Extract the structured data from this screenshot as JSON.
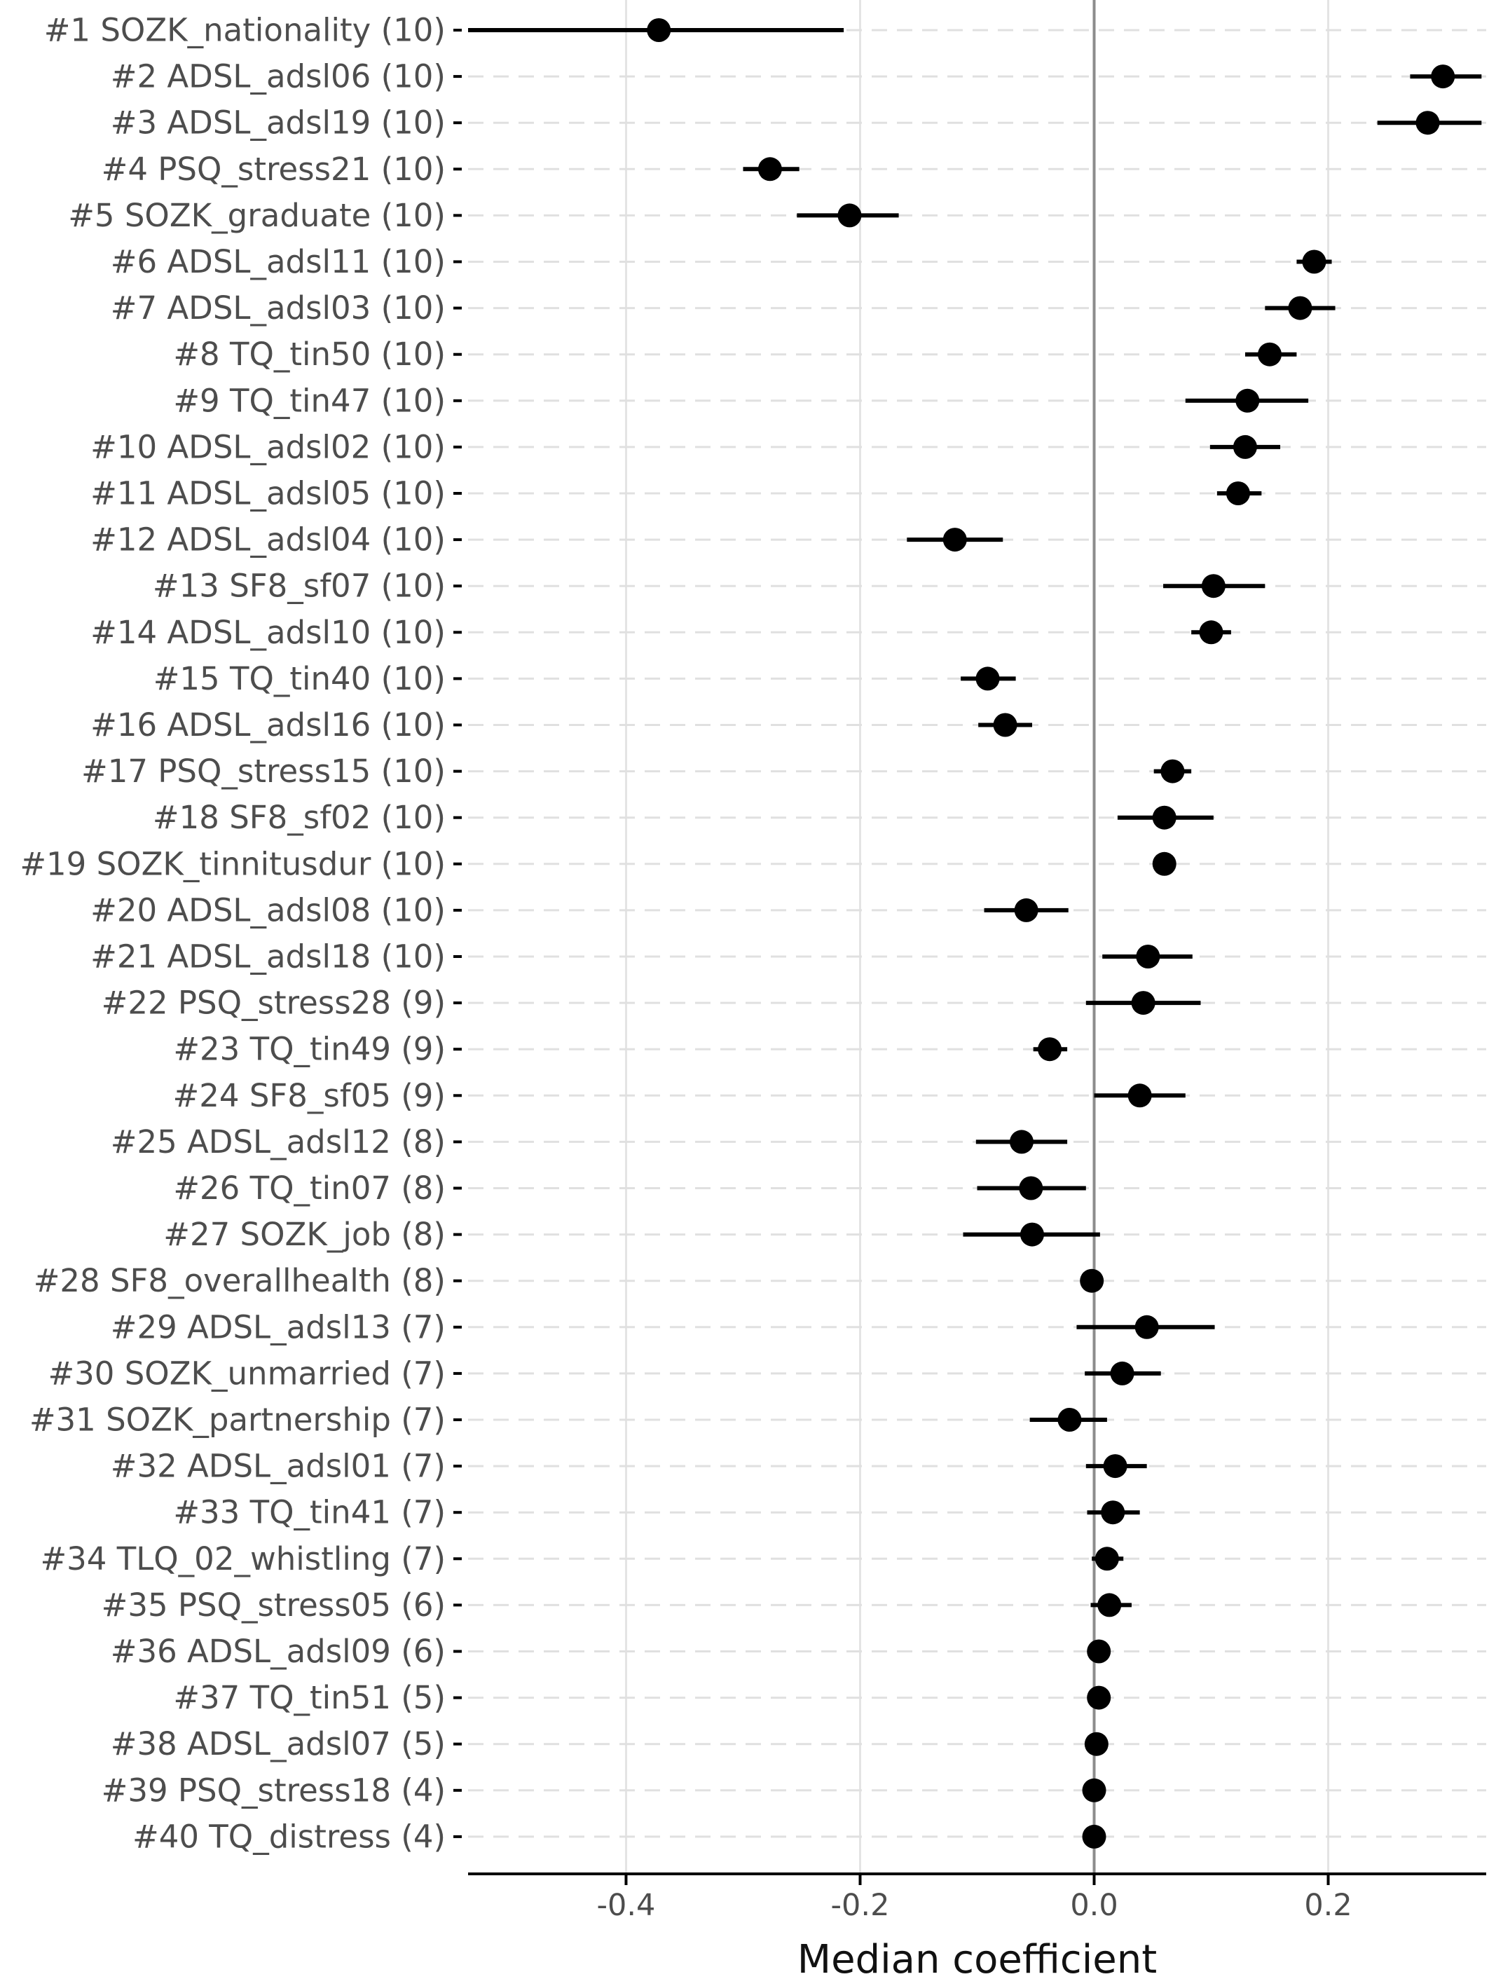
{
  "chart_data": {
    "type": "scatter",
    "xlabel": "Median coefficient",
    "ylabel": "",
    "xlim": [
      -0.535,
      0.335
    ],
    "xticks": [
      -0.4,
      -0.2,
      0.0,
      0.2
    ],
    "xtick_labels": [
      "-0.4",
      "-0.2",
      "0.0",
      "0.2"
    ],
    "vline": 0,
    "colors": {
      "point": "#000000",
      "grid": "#e4e4e4",
      "dashed": "#e0e0e0",
      "zero_line": "#8c8c8c",
      "axis": "#000000"
    },
    "categories": [
      "#1 SOZK_nationality (10)",
      "#2 ADSL_adsl06 (10)",
      "#3 ADSL_adsl19 (10)",
      "#4 PSQ_stress21 (10)",
      "#5 SOZK_graduate (10)",
      "#6 ADSL_adsl11 (10)",
      "#7 ADSL_adsl03 (10)",
      "#8 TQ_tin50 (10)",
      "#9 TQ_tin47 (10)",
      "#10 ADSL_adsl02 (10)",
      "#11 ADSL_adsl05 (10)",
      "#12 ADSL_adsl04 (10)",
      "#13 SF8_sf07 (10)",
      "#14 ADSL_adsl10 (10)",
      "#15 TQ_tin40 (10)",
      "#16 ADSL_adsl16 (10)",
      "#17 PSQ_stress15 (10)",
      "#18 SF8_sf02 (10)",
      "#19 SOZK_tinnitusdur (10)",
      "#20 ADSL_adsl08 (10)",
      "#21 ADSL_adsl18 (10)",
      "#22 PSQ_stress28 (9)",
      "#23 TQ_tin49 (9)",
      "#24 SF8_sf05 (9)",
      "#25 ADSL_adsl12 (8)",
      "#26 TQ_tin07 (8)",
      "#27 SOZK_job (8)",
      "#28 SF8_overallhealth (8)",
      "#29 ADSL_adsl13 (7)",
      "#30 SOZK_unmarried (7)",
      "#31 SOZK_partnership (7)",
      "#32 ADSL_adsl01 (7)",
      "#33 TQ_tin41 (7)",
      "#34 TLQ_02_whistling (7)",
      "#35 PSQ_stress05 (6)",
      "#36 ADSL_adsl09 (6)",
      "#37 TQ_tin51 (5)",
      "#38 ADSL_adsl07 (5)",
      "#39 PSQ_stress18 (4)",
      "#40 TQ_distress (4)"
    ],
    "median": [
      -0.372,
      0.298,
      0.285,
      -0.277,
      -0.209,
      0.188,
      0.176,
      0.15,
      0.131,
      0.129,
      0.123,
      -0.119,
      0.102,
      0.1,
      -0.091,
      -0.076,
      0.067,
      0.06,
      0.06,
      -0.058,
      0.046,
      0.042,
      -0.038,
      0.039,
      -0.062,
      -0.054,
      -0.053,
      -0.002,
      0.045,
      0.024,
      -0.021,
      0.018,
      0.016,
      0.011,
      0.013,
      0.004,
      0.004,
      0.002,
      0.0,
      0.0
    ],
    "lower": [
      -0.535,
      0.27,
      0.242,
      -0.3,
      -0.254,
      0.173,
      0.146,
      0.129,
      0.078,
      0.099,
      0.105,
      -0.16,
      0.059,
      0.083,
      -0.114,
      -0.099,
      0.051,
      0.02,
      0.06,
      -0.094,
      0.007,
      -0.007,
      -0.052,
      0.0,
      -0.101,
      -0.1,
      -0.112,
      -0.002,
      -0.015,
      -0.008,
      -0.055,
      -0.007,
      -0.006,
      -0.002,
      -0.003,
      0.004,
      0.004,
      0.002,
      0.0,
      0.0
    ],
    "upper": [
      -0.214,
      0.331,
      0.331,
      -0.252,
      -0.167,
      0.203,
      0.206,
      0.173,
      0.183,
      0.159,
      0.143,
      -0.078,
      0.146,
      0.117,
      -0.067,
      -0.053,
      0.083,
      0.102,
      0.06,
      -0.022,
      0.084,
      0.091,
      -0.023,
      0.078,
      -0.023,
      -0.007,
      0.005,
      -0.002,
      0.103,
      0.057,
      0.011,
      0.045,
      0.039,
      0.025,
      0.032,
      0.004,
      0.004,
      0.002,
      0.0,
      0.0
    ]
  }
}
